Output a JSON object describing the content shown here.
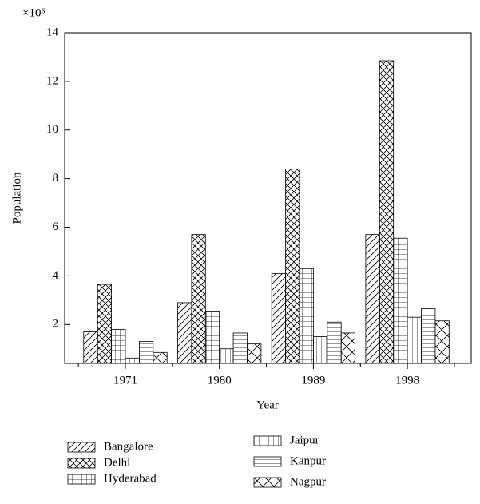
{
  "chart_data": {
    "type": "bar",
    "x_label": "Year",
    "y_label": "Population",
    "y_multiplier": "×10⁶",
    "categories": [
      "1971",
      "1980",
      "1989",
      "1998"
    ],
    "series": [
      {
        "name": "Bangalore",
        "pattern": "diagonal",
        "color": "#000000",
        "values": [
          1.7,
          2.9,
          4.1,
          5.7
        ]
      },
      {
        "name": "Delhi",
        "pattern": "crosshatch",
        "color": "#000000",
        "values": [
          3.65,
          5.7,
          8.4,
          12.85
        ]
      },
      {
        "name": "Hyderabad",
        "pattern": "grid",
        "color": "#000000",
        "values": [
          1.8,
          2.55,
          4.3,
          5.55
        ]
      },
      {
        "name": "Jaipur",
        "pattern": "vertical",
        "color": "#000000",
        "values": [
          0.62,
          1.0,
          1.5,
          2.3
        ]
      },
      {
        "name": "Kanpur",
        "pattern": "horizontal",
        "color": "#000000",
        "values": [
          1.3,
          1.65,
          2.1,
          2.65
        ]
      },
      {
        "name": "Nagpur",
        "pattern": "bigcross",
        "color": "#000000",
        "values": [
          0.85,
          1.2,
          1.65,
          2.15
        ]
      }
    ],
    "ylim": [
      0.4,
      14
    ],
    "yticks": [
      2,
      4,
      6,
      8,
      10,
      12,
      14
    ],
    "grid": false
  }
}
